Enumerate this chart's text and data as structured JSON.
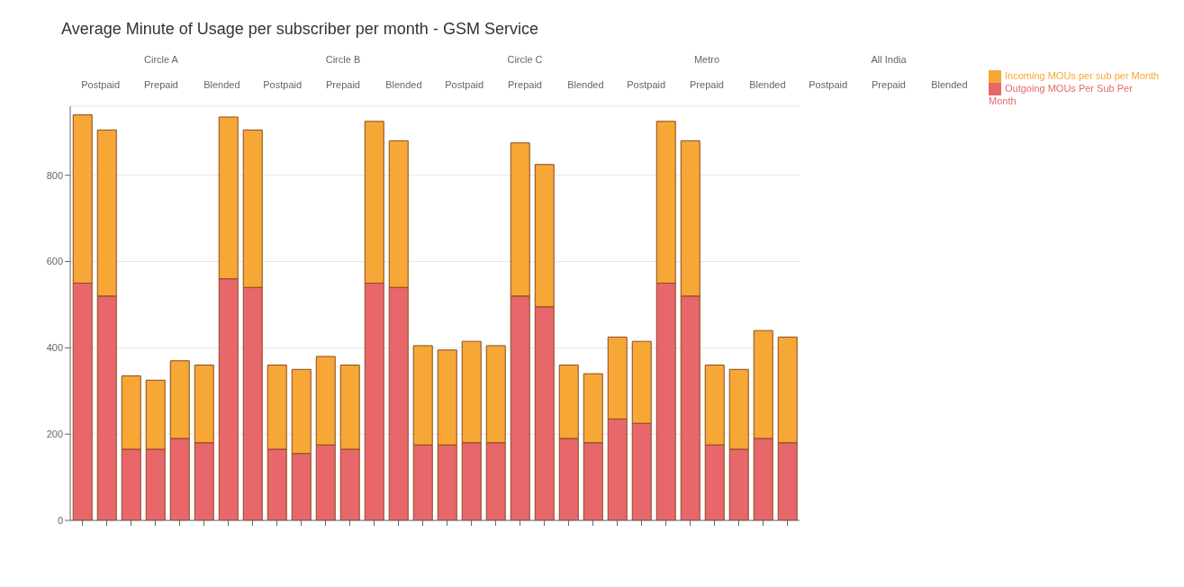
{
  "chart_data": {
    "type": "bar",
    "title": "Average Minute of Usage per subscriber per month - GSM Service",
    "categories": [
      null,
      null,
      null,
      null,
      null,
      null,
      null,
      null,
      null,
      null,
      null,
      null,
      null,
      null,
      null,
      null,
      null,
      null,
      null,
      null,
      null,
      null,
      null,
      null,
      null,
      null,
      null,
      null,
      null,
      null
    ],
    "series": [
      {
        "name": "Outgoing MOUs Per Sub Per Month",
        "color": "#e8676b",
        "values": [
          550,
          520,
          165,
          165,
          190,
          180,
          560,
          540,
          165,
          155,
          175,
          165,
          550,
          540,
          175,
          175,
          180,
          180,
          520,
          495,
          190,
          180,
          235,
          225,
          550,
          520,
          175,
          165,
          190,
          180
        ]
      },
      {
        "name": "Incoming MOUs per sub per Month",
        "color": "#f6a735",
        "values": [
          390,
          385,
          170,
          160,
          180,
          180,
          375,
          365,
          195,
          195,
          205,
          195,
          375,
          340,
          230,
          220,
          235,
          225,
          355,
          330,
          170,
          160,
          190,
          190,
          375,
          360,
          185,
          185,
          250,
          245
        ]
      }
    ],
    "stacked": true,
    "ylim": [
      0,
      960
    ],
    "yticks": [
      0,
      200,
      400,
      600,
      800
    ],
    "grid": "y",
    "legend": "top right",
    "annotations": [
      "Circle A",
      "Postpaid",
      "Prepaid",
      "Blended",
      "Circle B",
      "Postpaid",
      "Prepaid",
      "Blended",
      "Circle C",
      "Postpaid",
      "Prepaid",
      "Blended",
      "Metro",
      "Postpaid",
      "Prepaid",
      "Blended",
      "All India",
      "Postpaid",
      "Prepaid",
      "Blended"
    ]
  }
}
